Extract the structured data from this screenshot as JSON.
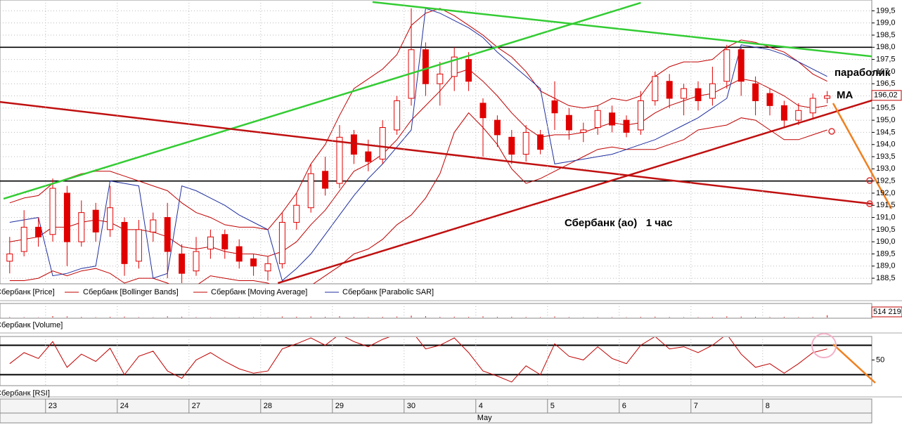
{
  "chart_data": [
    {
      "type": "candlestick",
      "categories": [
        null,
        null,
        null,
        "23",
        null,
        null,
        null,
        null,
        "24",
        null,
        null,
        null,
        null,
        "27",
        null,
        null,
        null,
        null,
        "28",
        null,
        null,
        null,
        null,
        "29",
        null,
        null,
        null,
        null,
        "30",
        null,
        null,
        null,
        null,
        "4",
        null,
        null,
        null,
        null,
        "5",
        null,
        null,
        null,
        null,
        "6",
        null,
        null,
        null,
        null,
        "7",
        null,
        null,
        null,
        null,
        "8",
        null,
        null,
        null,
        null
      ],
      "month": "May",
      "open": [
        189.2,
        189.6,
        190.6,
        190.3,
        192.0,
        190.0,
        191.3,
        190.5,
        190.8,
        189.2,
        190.4,
        191.0,
        189.5,
        188.8,
        189.7,
        190.3,
        189.8,
        189.3,
        188.8,
        189.1,
        190.8,
        191.4,
        192.9,
        192.4,
        194.4,
        193.7,
        193.4,
        194.6,
        195.9,
        197.9,
        196.5,
        196.8,
        197.5,
        195.7,
        195.0,
        194.3,
        193.6,
        194.4,
        195.8,
        195.2,
        194.5,
        194.7,
        195.3,
        195.0,
        194.6,
        195.8,
        196.6,
        195.9,
        196.3,
        195.9,
        196.6,
        197.9,
        196.5,
        196.1,
        195.6,
        195.0,
        195.3,
        195.9
      ],
      "high": [
        190.2,
        191.3,
        191.0,
        192.6,
        192.3,
        191.7,
        191.6,
        192.3,
        191.0,
        190.9,
        191.2,
        191.6,
        189.9,
        190.2,
        190.5,
        190.5,
        190.1,
        189.5,
        189.4,
        191.2,
        192.0,
        193.2,
        193.5,
        194.8,
        194.6,
        194.2,
        195.0,
        196.0,
        199.6,
        198.2,
        197.4,
        198.0,
        197.8,
        195.9,
        195.2,
        194.6,
        194.8,
        194.6,
        196.6,
        195.5,
        194.9,
        195.6,
        195.6,
        195.2,
        196.2,
        197.0,
        196.9,
        196.5,
        196.6,
        197.2,
        198.1,
        198.0,
        196.8,
        196.3,
        195.8,
        195.7,
        196.1,
        196.2
      ],
      "low": [
        188.7,
        189.4,
        189.8,
        190.0,
        189.0,
        189.8,
        190.0,
        190.2,
        188.6,
        188.9,
        190.0,
        188.5,
        188.3,
        188.6,
        189.3,
        189.3,
        188.9,
        188.6,
        188.4,
        188.9,
        190.5,
        191.2,
        191.9,
        192.2,
        193.2,
        192.9,
        193.2,
        194.4,
        195.6,
        196.0,
        195.6,
        196.2,
        196.2,
        193.5,
        193.9,
        193.2,
        193.3,
        193.6,
        194.6,
        194.2,
        194.1,
        194.4,
        194.5,
        194.3,
        194.4,
        195.6,
        195.5,
        195.2,
        195.4,
        195.6,
        196.3,
        196.0,
        195.2,
        195.2,
        194.7,
        194.8,
        195.1,
        195.7
      ],
      "close": [
        189.5,
        190.6,
        190.2,
        192.2,
        190.0,
        191.2,
        190.4,
        191.4,
        189.1,
        190.5,
        190.9,
        189.6,
        188.7,
        189.6,
        190.2,
        189.7,
        189.2,
        189.0,
        189.1,
        190.8,
        191.5,
        192.8,
        192.2,
        194.3,
        193.6,
        193.3,
        194.7,
        195.8,
        197.9,
        196.5,
        196.9,
        197.6,
        196.6,
        195.1,
        194.4,
        193.6,
        194.5,
        193.8,
        195.3,
        194.6,
        194.6,
        195.4,
        194.8,
        194.5,
        195.8,
        196.8,
        195.9,
        196.3,
        195.8,
        196.5,
        197.9,
        196.6,
        195.8,
        195.6,
        195.0,
        195.4,
        195.9,
        196.0
      ],
      "series": [
        {
          "name": "Сбербанк [Price]",
          "color": "#e00000"
        },
        {
          "name": "Сбербанк [Bollinger Bands]",
          "color": "#c00000",
          "upper": [
            191.6,
            191.8,
            191.9,
            192.4,
            192.6,
            192.8,
            192.9,
            192.9,
            192.7,
            192.5,
            192.3,
            192.1,
            191.6,
            191.2,
            191.0,
            190.7,
            190.6,
            190.6,
            190.5,
            191.2,
            192.0,
            193.2,
            194.0,
            195.2,
            196.3,
            196.7,
            197.1,
            197.7,
            198.9,
            199.4,
            199.6,
            199.3,
            198.9,
            198.5,
            198.0,
            197.6,
            197.0,
            196.2,
            195.9,
            195.6,
            195.5,
            195.6,
            195.9,
            195.8,
            196.0,
            196.8,
            197.2,
            197.4,
            197.4,
            197.5,
            198.0,
            198.3,
            198.2,
            198.0,
            197.8,
            197.4,
            196.9,
            196.6
          ],
          "lower": [
            188.4,
            188.4,
            188.5,
            188.8,
            188.6,
            188.8,
            188.9,
            188.7,
            188.3,
            188.5,
            188.5,
            188.3,
            188.0,
            188.2,
            188.6,
            188.5,
            188.4,
            188.4,
            188.3,
            188.0,
            188.0,
            188.2,
            188.6,
            189.0,
            189.5,
            189.7,
            190.1,
            190.7,
            191.1,
            191.8,
            192.8,
            194.5,
            195.3,
            194.7,
            194.0,
            193.0,
            192.4,
            192.6,
            192.9,
            193.2,
            193.5,
            193.8,
            193.9,
            193.8,
            193.8,
            193.8,
            194.0,
            194.2,
            194.6,
            194.7,
            194.8,
            195.1,
            195.0,
            194.6,
            194.2,
            194.2,
            194.4,
            194.6
          ]
        },
        {
          "name": "Сбербанк [Moving Average]",
          "color": "#c00000",
          "values": [
            190.0,
            190.1,
            190.2,
            190.6,
            190.6,
            190.8,
            190.9,
            190.8,
            190.5,
            190.5,
            190.4,
            190.2,
            189.8,
            189.7,
            189.8,
            189.6,
            189.5,
            189.5,
            189.4,
            189.6,
            190.0,
            190.7,
            191.3,
            192.1,
            192.9,
            193.2,
            193.6,
            194.2,
            195.0,
            195.6,
            196.2,
            196.9,
            197.1,
            196.6,
            196.0,
            195.3,
            194.7,
            194.3,
            194.4,
            194.4,
            194.5,
            194.7,
            194.9,
            194.8,
            194.9,
            195.3,
            195.6,
            195.8,
            196.0,
            196.1,
            196.4,
            196.7,
            196.6,
            196.3,
            196.0,
            195.6,
            195.5,
            195.6
          ]
        },
        {
          "name": "Сбербанк [Parabolic SAR]",
          "color": "#1f2f9f",
          "values": [
            190.8,
            190.9,
            191.0,
            188.6,
            188.7,
            188.9,
            189.0,
            192.5,
            192.4,
            192.3,
            188.5,
            188.7,
            192.3,
            192.1,
            191.8,
            191.5,
            191.1,
            190.8,
            190.5,
            188.4,
            188.9,
            189.5,
            190.3,
            191.1,
            191.9,
            192.6,
            193.2,
            193.9,
            194.6,
            199.6,
            199.4,
            199.1,
            198.8,
            198.4,
            197.8,
            197.3,
            196.8,
            196.3,
            193.2,
            193.3,
            193.4,
            193.5,
            193.6,
            193.8,
            194.0,
            194.2,
            194.5,
            194.8,
            195.1,
            195.5,
            195.9,
            198.1,
            198.0,
            197.9,
            197.7,
            197.4,
            197.1,
            196.8
          ]
        }
      ],
      "ylim": [
        188.3,
        199.8
      ],
      "yticks": [
        {
          "value": 188.5,
          "label": "188,5"
        },
        {
          "value": 189.0,
          "label": "189,0"
        },
        {
          "value": 189.5,
          "label": "189,5"
        },
        {
          "value": 190.0,
          "label": "190,0"
        },
        {
          "value": 190.5,
          "label": "190,5"
        },
        {
          "value": 191.0,
          "label": "191,0"
        },
        {
          "value": 191.5,
          "label": "191,5"
        },
        {
          "value": 192.0,
          "label": "192,0"
        },
        {
          "value": 192.5,
          "label": "192,5"
        },
        {
          "value": 193.0,
          "label": "193,0"
        },
        {
          "value": 193.5,
          "label": "193,5"
        },
        {
          "value": 194.0,
          "label": "194,0"
        },
        {
          "value": 194.5,
          "label": "194,5"
        },
        {
          "value": 195.0,
          "label": "195,0"
        },
        {
          "value": 195.5,
          "label": "195,5"
        },
        {
          "value": 196.0,
          "label": "196,0"
        },
        {
          "value": 196.5,
          "label": "196,5"
        },
        {
          "value": 197.0,
          "label": "197,0"
        },
        {
          "value": 197.5,
          "label": "197,5"
        },
        {
          "value": 198.0,
          "label": "198,0"
        },
        {
          "value": 198.5,
          "label": "198,5"
        },
        {
          "value": 199.0,
          "label": "199,0"
        },
        {
          "value": 199.5,
          "label": "199,5"
        }
      ],
      "grid": true,
      "last_value": {
        "value": 196.02,
        "label": "196,02"
      },
      "hlines": [
        198.0,
        192.5
      ],
      "trendlines": [
        {
          "color": "#33cc33",
          "x": [
            -0.43,
            44.0
          ],
          "y": [
            191.77,
            199.83
          ]
        },
        {
          "color": "#33cc33",
          "x": [
            25.3,
            62.2
          ],
          "y": [
            199.86,
            197.49
          ]
        },
        {
          "color": "#c01010",
          "x": [
            -0.68,
            60.1
          ],
          "y": [
            195.75,
            191.56
          ]
        },
        {
          "color": "#c01010",
          "x": [
            18.7,
            60.1
          ],
          "y": [
            188.3,
            195.81
          ]
        }
      ],
      "annotations": [
        "параболик",
        "MA",
        "Сбербанк (ао)   1 час"
      ]
    },
    {
      "type": "bar",
      "title": "Сбербанк [Volume]",
      "color": "#e00000",
      "values": [
        120000,
        90000,
        60000,
        310000,
        250000,
        140000,
        80000,
        160000,
        200000,
        90000,
        70000,
        260000,
        180000,
        90000,
        60000,
        50000,
        70000,
        80000,
        60000,
        220000,
        170000,
        230000,
        150000,
        280000,
        130000,
        110000,
        160000,
        210000,
        420000,
        300000,
        150000,
        180000,
        140000,
        260000,
        150000,
        170000,
        120000,
        90000,
        230000,
        110000,
        80000,
        100000,
        90000,
        70000,
        140000,
        190000,
        120000,
        80000,
        90000,
        130000,
        250000,
        200000,
        160000,
        110000,
        140000,
        90000,
        120000,
        514219
      ],
      "ylim": [
        0,
        3000000
      ],
      "last_value": {
        "value": 514219,
        "label": "514 219"
      }
    },
    {
      "type": "line",
      "title": "Сбербанк [RSI]",
      "color": "#c00000",
      "values": [
        45,
        60,
        52,
        75,
        40,
        58,
        48,
        66,
        30,
        55,
        62,
        35,
        25,
        50,
        60,
        48,
        38,
        32,
        35,
        65,
        72,
        80,
        70,
        85,
        75,
        68,
        78,
        85,
        90,
        65,
        70,
        80,
        60,
        35,
        28,
        20,
        42,
        30,
        72,
        55,
        50,
        68,
        52,
        45,
        70,
        82,
        65,
        68,
        60,
        70,
        85,
        58,
        40,
        45,
        32,
        45,
        60,
        65
      ],
      "ylim": [
        16,
        81
      ],
      "yticks": [
        50
      ],
      "levels": [
        70,
        30
      ]
    }
  ]
}
